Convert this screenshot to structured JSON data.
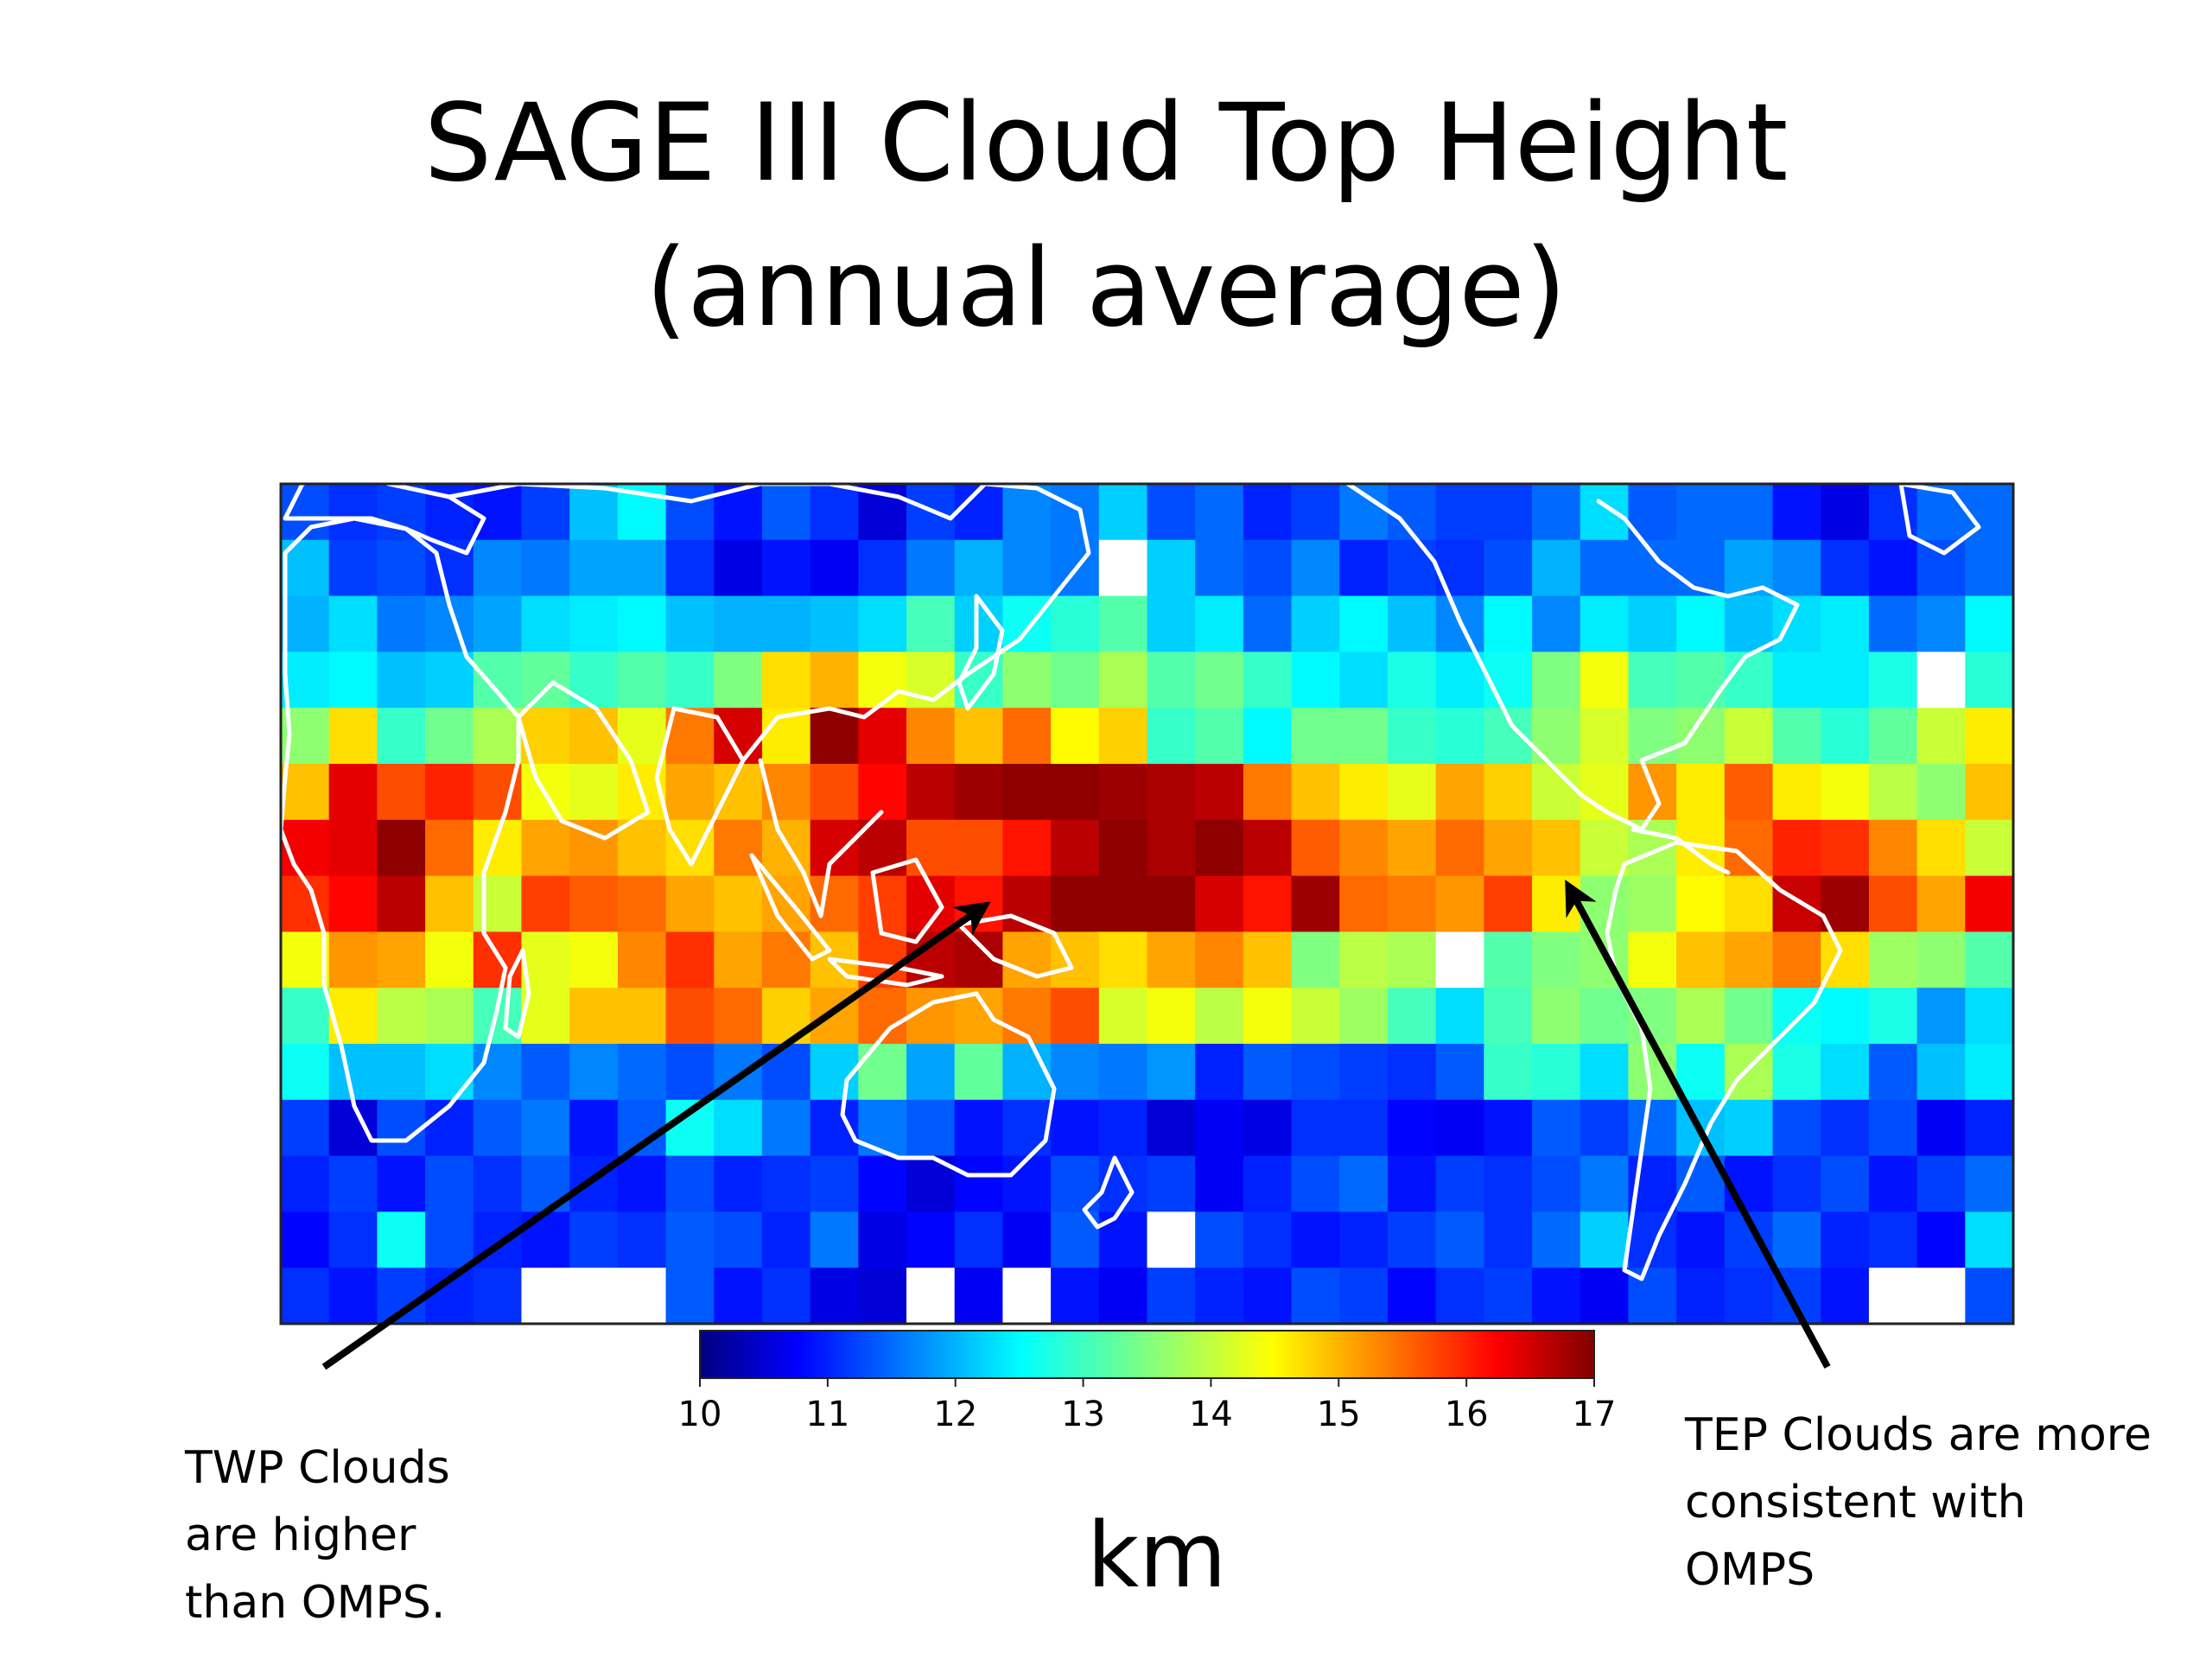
{
  "title": {
    "line1": "SAGE III Cloud Top Height",
    "line2": "(annual average)"
  },
  "colorbar": {
    "unit_label": "km",
    "ticks": [
      "10",
      "11",
      "12",
      "13",
      "14",
      "15",
      "16",
      "17"
    ],
    "range": [
      10,
      17
    ],
    "colormap": "jet"
  },
  "annotations": {
    "left": "TWP Clouds\nare higher\nthan OMPS.",
    "right": "TEP Clouds are more\nconsistent with\nOMPS"
  },
  "colors": {
    "coastline": "#ffffff",
    "arrow": "#000000",
    "missing": "#ffffff"
  },
  "chart_data": {
    "type": "heatmap",
    "title": "SAGE III Cloud Top Height (annual average)",
    "colorbar_label": "km",
    "vmin": 10,
    "vmax": 17,
    "grid_rows": 15,
    "grid_cols": 36,
    "missing_value": null,
    "values": [
      [
        11.4,
        11.2,
        11.3,
        11.1,
        11.0,
        11.3,
        12.2,
        12.6,
        11.4,
        11.0,
        11.5,
        11.2,
        10.6,
        11.3,
        11.1,
        11.8,
        11.7,
        12.3,
        11.4,
        11.6,
        11.1,
        11.3,
        11.7,
        11.5,
        11.3,
        11.3,
        11.6,
        12.4,
        11.5,
        11.6,
        11.6,
        11.0,
        10.7,
        11.2,
        11.6,
        11.6
      ],
      [
        12.2,
        11.3,
        11.4,
        11.2,
        11.8,
        11.7,
        12.0,
        12.0,
        11.2,
        10.7,
        11.0,
        10.8,
        11.2,
        11.7,
        12.1,
        11.8,
        11.7,
        null,
        12.3,
        11.6,
        11.4,
        11.8,
        11.1,
        11.3,
        11.2,
        11.4,
        12.1,
        11.6,
        11.6,
        11.6,
        12.0,
        11.8,
        11.2,
        11.0,
        11.4,
        11.6
      ],
      [
        12.1,
        12.4,
        11.7,
        11.8,
        12.0,
        12.4,
        12.5,
        12.6,
        12.2,
        12.1,
        12.1,
        12.2,
        12.4,
        13.1,
        12.3,
        12.7,
        12.9,
        13.2,
        12.3,
        12.5,
        11.6,
        12.3,
        12.6,
        12.2,
        11.8,
        12.6,
        11.8,
        12.5,
        12.3,
        12.6,
        12.2,
        12.4,
        12.5,
        11.6,
        11.8,
        12.6
      ],
      [
        12.5,
        12.6,
        12.2,
        12.3,
        13.2,
        13.3,
        13.0,
        13.2,
        13.0,
        13.5,
        14.6,
        14.9,
        14.3,
        14.1,
        13.0,
        13.6,
        13.4,
        13.8,
        13.2,
        13.4,
        13.0,
        12.6,
        12.4,
        12.8,
        12.5,
        12.7,
        13.5,
        14.3,
        13.1,
        13.2,
        13.0,
        12.5,
        12.5,
        12.8,
        null,
        12.9
      ],
      [
        13.6,
        14.6,
        13.0,
        13.4,
        13.8,
        14.7,
        14.8,
        14.2,
        15.3,
        16.4,
        14.5,
        16.9,
        16.3,
        15.2,
        14.8,
        15.4,
        14.4,
        14.7,
        13.0,
        13.2,
        12.6,
        13.4,
        13.4,
        13.0,
        12.9,
        13.1,
        13.6,
        14.1,
        13.5,
        13.6,
        14.0,
        13.2,
        12.9,
        13.3,
        14.0,
        14.5
      ],
      [
        14.8,
        16.3,
        15.6,
        15.9,
        15.6,
        14.3,
        14.2,
        14.5,
        15.0,
        14.8,
        15.2,
        15.6,
        16.1,
        16.6,
        16.8,
        16.9,
        16.9,
        16.8,
        16.7,
        16.6,
        15.3,
        14.8,
        14.5,
        14.2,
        15.0,
        14.7,
        14.0,
        14.2,
        15.1,
        14.5,
        15.5,
        14.5,
        14.3,
        13.9,
        13.6,
        14.8
      ],
      [
        16.2,
        16.3,
        16.9,
        15.4,
        14.5,
        15.0,
        15.1,
        14.8,
        14.6,
        15.3,
        14.9,
        16.4,
        16.6,
        15.6,
        15.6,
        16.0,
        16.6,
        16.9,
        16.7,
        16.9,
        16.6,
        15.5,
        15.2,
        15.0,
        15.4,
        15.0,
        14.8,
        14.0,
        13.8,
        14.5,
        15.4,
        15.9,
        15.8,
        15.2,
        14.6,
        14.0
      ],
      [
        15.8,
        16.1,
        16.6,
        14.8,
        14.0,
        15.7,
        15.5,
        15.4,
        15.0,
        14.8,
        15.0,
        15.4,
        15.7,
        16.3,
        16.0,
        16.6,
        16.9,
        16.9,
        16.9,
        16.4,
        16.0,
        16.8,
        15.4,
        15.3,
        15.1,
        15.7,
        14.5,
        13.6,
        13.7,
        14.4,
        14.6,
        16.5,
        16.8,
        15.6,
        15.0,
        16.2
      ],
      [
        14.3,
        15.1,
        15.0,
        14.3,
        15.8,
        14.2,
        14.3,
        15.2,
        15.8,
        15.0,
        15.3,
        14.8,
        15.7,
        16.6,
        16.7,
        15.0,
        14.8,
        14.6,
        15.0,
        15.2,
        14.8,
        13.5,
        13.9,
        13.8,
        null,
        13.2,
        13.5,
        13.6,
        14.3,
        14.8,
        15.0,
        15.3,
        14.6,
        13.7,
        13.6,
        13.2
      ],
      [
        13.0,
        14.5,
        13.9,
        13.8,
        13.1,
        14.2,
        14.8,
        14.8,
        15.6,
        15.4,
        14.7,
        15.0,
        15.4,
        15.1,
        15.0,
        15.3,
        15.6,
        14.1,
        14.3,
        13.9,
        14.3,
        14.0,
        13.7,
        13.1,
        12.4,
        13.1,
        13.6,
        13.4,
        13.5,
        13.8,
        13.4,
        12.7,
        12.6,
        12.8,
        11.9,
        12.4
      ],
      [
        12.7,
        12.2,
        12.2,
        12.4,
        11.8,
        11.5,
        11.8,
        11.6,
        11.4,
        11.7,
        11.4,
        12.3,
        13.4,
        12.0,
        13.3,
        12.1,
        11.8,
        11.7,
        11.9,
        11.1,
        11.5,
        11.4,
        11.3,
        11.2,
        11.5,
        13.0,
        12.9,
        12.4,
        13.6,
        12.7,
        13.8,
        12.8,
        12.4,
        11.5,
        12.2,
        12.5
      ],
      [
        11.3,
        10.6,
        11.4,
        11.1,
        11.5,
        11.7,
        11.0,
        11.5,
        12.7,
        12.4,
        11.7,
        11.1,
        11.7,
        11.5,
        11.0,
        11.2,
        11.0,
        11.1,
        10.6,
        10.8,
        10.7,
        11.2,
        11.2,
        10.9,
        10.8,
        11.0,
        11.5,
        11.3,
        11.6,
        12.2,
        12.3,
        11.4,
        11.2,
        11.4,
        10.8,
        11.1
      ],
      [
        11.1,
        11.3,
        11.0,
        11.4,
        11.2,
        11.5,
        11.1,
        11.0,
        11.4,
        11.1,
        11.2,
        11.3,
        10.9,
        10.6,
        10.9,
        11.0,
        11.4,
        11.2,
        11.3,
        10.8,
        11.1,
        11.4,
        11.6,
        11.0,
        11.3,
        11.2,
        11.4,
        11.7,
        11.1,
        11.5,
        11.0,
        11.2,
        11.4,
        11.0,
        11.3,
        11.6
      ],
      [
        10.9,
        11.2,
        12.7,
        11.4,
        11.1,
        11.0,
        11.3,
        11.2,
        11.5,
        11.4,
        11.1,
        11.7,
        10.7,
        10.9,
        11.2,
        10.8,
        11.5,
        11.0,
        null,
        11.4,
        11.2,
        11.0,
        11.1,
        11.3,
        11.5,
        11.2,
        11.6,
        12.3,
        11.2,
        11.0,
        11.3,
        11.6,
        11.1,
        11.2,
        10.9,
        12.4
      ],
      [
        11.2,
        11.0,
        11.3,
        11.1,
        11.2,
        null,
        null,
        null,
        11.5,
        11.0,
        11.2,
        10.7,
        10.6,
        null,
        10.8,
        null,
        11.0,
        10.8,
        11.3,
        11.1,
        11.0,
        11.4,
        11.3,
        10.9,
        11.2,
        11.3,
        11.0,
        10.8,
        11.4,
        11.1,
        11.2,
        11.3,
        11.0,
        null,
        null,
        11.4
      ]
    ]
  }
}
